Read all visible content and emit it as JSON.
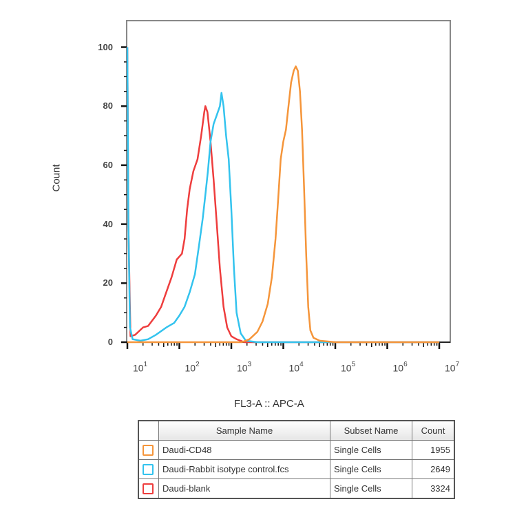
{
  "chart_data": {
    "type": "line",
    "title": "",
    "xlabel": "FL3-A :: APC-A",
    "ylabel": "Count",
    "xscale": "log",
    "xlim": [
      10,
      10000000
    ],
    "ylim": [
      0,
      108
    ],
    "y_ticks": [
      0,
      20,
      40,
      60,
      80,
      100
    ],
    "x_ticks": [
      {
        "base": "10",
        "exp": "1"
      },
      {
        "base": "10",
        "exp": "2"
      },
      {
        "base": "10",
        "exp": "3"
      },
      {
        "base": "10",
        "exp": "4"
      },
      {
        "base": "10",
        "exp": "5"
      },
      {
        "base": "10",
        "exp": "6"
      },
      {
        "base": "10",
        "exp": "7"
      }
    ],
    "grid": false,
    "legend_position": "bottom-table",
    "series": [
      {
        "name": "Daudi-CD48",
        "subset": "Single Cells",
        "count": "1955",
        "color": "#f5953a",
        "points_log10x_y": [
          [
            1.0,
            0
          ],
          [
            3.2,
            0
          ],
          [
            3.35,
            1
          ],
          [
            3.5,
            3.5
          ],
          [
            3.6,
            7
          ],
          [
            3.7,
            13
          ],
          [
            3.78,
            22
          ],
          [
            3.85,
            35
          ],
          [
            3.9,
            48
          ],
          [
            3.95,
            62
          ],
          [
            4.0,
            68
          ],
          [
            4.05,
            72
          ],
          [
            4.1,
            80
          ],
          [
            4.15,
            88
          ],
          [
            4.2,
            92
          ],
          [
            4.24,
            93.5
          ],
          [
            4.28,
            92
          ],
          [
            4.32,
            85
          ],
          [
            4.36,
            72
          ],
          [
            4.4,
            52
          ],
          [
            4.44,
            30
          ],
          [
            4.48,
            12
          ],
          [
            4.52,
            4
          ],
          [
            4.58,
            1.5
          ],
          [
            4.7,
            0.5
          ],
          [
            5.0,
            0
          ],
          [
            7.0,
            0
          ]
        ]
      },
      {
        "name": "Daudi-Rabbit isotype control.fcs",
        "subset": "Single Cells",
        "count": "2649",
        "color": "#33c3ee",
        "points_log10x_y": [
          [
            1.0,
            100
          ],
          [
            1.02,
            40
          ],
          [
            1.05,
            5
          ],
          [
            1.1,
            1
          ],
          [
            1.25,
            0.5
          ],
          [
            1.4,
            1
          ],
          [
            1.55,
            2.5
          ],
          [
            1.75,
            5
          ],
          [
            1.9,
            6.5
          ],
          [
            2.0,
            9
          ],
          [
            2.1,
            12
          ],
          [
            2.2,
            17
          ],
          [
            2.3,
            23
          ],
          [
            2.38,
            33
          ],
          [
            2.45,
            42
          ],
          [
            2.5,
            50
          ],
          [
            2.55,
            58
          ],
          [
            2.6,
            68
          ],
          [
            2.66,
            74
          ],
          [
            2.72,
            77
          ],
          [
            2.78,
            80
          ],
          [
            2.81,
            84.5
          ],
          [
            2.85,
            80
          ],
          [
            2.9,
            70
          ],
          [
            2.95,
            62
          ],
          [
            3.0,
            45
          ],
          [
            3.05,
            25
          ],
          [
            3.1,
            10
          ],
          [
            3.18,
            3
          ],
          [
            3.28,
            0.5
          ],
          [
            3.5,
            0
          ],
          [
            7.0,
            0
          ]
        ]
      },
      {
        "name": "Daudi-blank",
        "subset": "Single Cells",
        "count": "3324",
        "color": "#ee3d3d",
        "points_log10x_y": [
          [
            1.0,
            100
          ],
          [
            1.02,
            40
          ],
          [
            1.06,
            2
          ],
          [
            1.15,
            2.5
          ],
          [
            1.3,
            5
          ],
          [
            1.4,
            5.5
          ],
          [
            1.55,
            9
          ],
          [
            1.65,
            12
          ],
          [
            1.75,
            17
          ],
          [
            1.85,
            22
          ],
          [
            1.95,
            28
          ],
          [
            2.05,
            30
          ],
          [
            2.1,
            35
          ],
          [
            2.15,
            45
          ],
          [
            2.2,
            52
          ],
          [
            2.27,
            58
          ],
          [
            2.35,
            62
          ],
          [
            2.42,
            70
          ],
          [
            2.48,
            78
          ],
          [
            2.5,
            80
          ],
          [
            2.54,
            78
          ],
          [
            2.6,
            68
          ],
          [
            2.66,
            55
          ],
          [
            2.72,
            40
          ],
          [
            2.78,
            25
          ],
          [
            2.85,
            12
          ],
          [
            2.92,
            5
          ],
          [
            3.0,
            2
          ],
          [
            3.1,
            1
          ],
          [
            3.25,
            0
          ],
          [
            7.0,
            0
          ]
        ]
      }
    ]
  },
  "legend": {
    "headers": {
      "sample": "Sample Name",
      "subset": "Subset Name",
      "count": "Count"
    }
  }
}
